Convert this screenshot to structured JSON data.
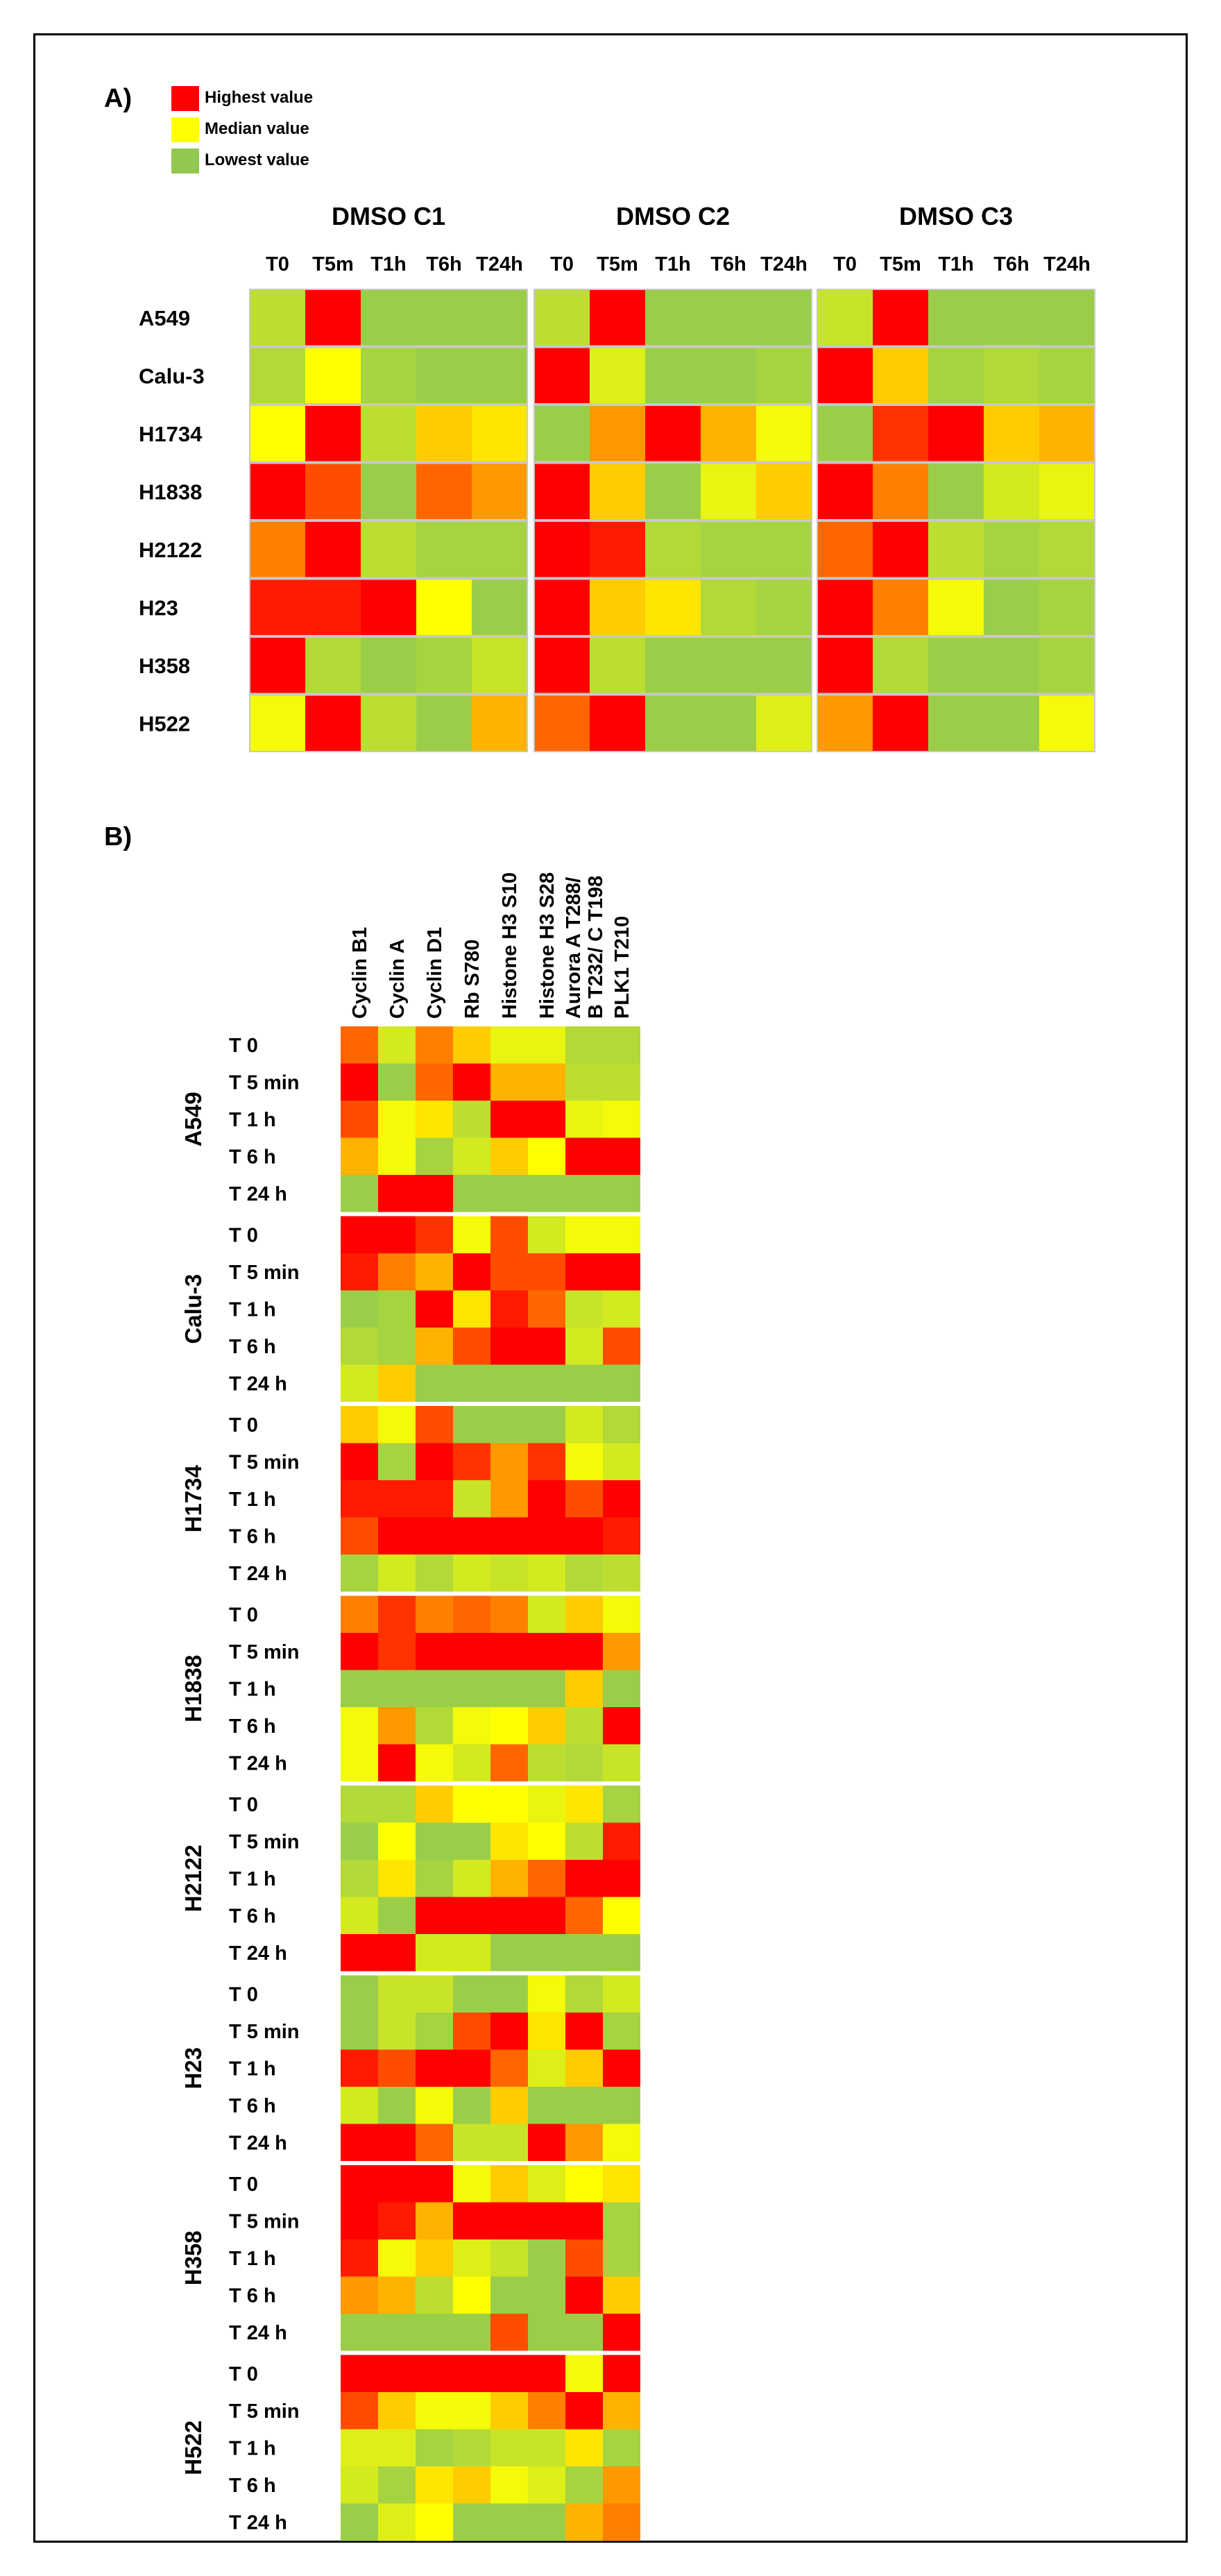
{
  "panel_a": {
    "label": "A)",
    "legend": [
      {
        "label": "Highest value",
        "color": "#ff0000"
      },
      {
        "label": "Median value",
        "color": "#ffff00"
      },
      {
        "label": "Lowest value",
        "color": "#90c850"
      }
    ]
  },
  "panel_b": {
    "label": "B)"
  },
  "colors": {
    "low": "#90c850",
    "mid": "#ffff00",
    "high": "#ff0000",
    "separator": "#ffffff",
    "frame": "#000000"
  },
  "chart_data": [
    {
      "type": "heatmap",
      "title": "A)",
      "color_scale": "0 = Lowest value (green), 0.5 = Median value (yellow), 1 = Highest value (red)",
      "groups": [
        "DMSO C1",
        "DMSO C2",
        "DMSO C3"
      ],
      "columns": [
        "T0",
        "T5m",
        "T1h",
        "T6h",
        "T24h"
      ],
      "rows": [
        "A549",
        "Calu-3",
        "H1734",
        "H1838",
        "H2122",
        "H23",
        "H358",
        "H522"
      ],
      "values": [
        [
          [
            0.2,
            1,
            0.05,
            0.05,
            0.05
          ],
          [
            0.15,
            0.5,
            0.1,
            0.05,
            0.05
          ],
          [
            0.5,
            1,
            0.2,
            0.6,
            0.55
          ],
          [
            1,
            0.85,
            0.05,
            0.8,
            0.7
          ],
          [
            0.75,
            1,
            0.2,
            0.1,
            0.1
          ],
          [
            0.95,
            0.95,
            1,
            0.5,
            0.05
          ],
          [
            1,
            0.15,
            0.05,
            0.1,
            0.25
          ],
          [
            0.45,
            1,
            0.2,
            0.05,
            0.65
          ]
        ],
        [
          [
            0.2,
            1,
            0.05,
            0.05,
            0.05
          ],
          [
            1,
            0.35,
            0.05,
            0.05,
            0.1
          ],
          [
            0.05,
            0.7,
            1,
            0.65,
            0.45
          ],
          [
            1,
            0.6,
            0.05,
            0.4,
            0.6
          ],
          [
            1,
            0.95,
            0.15,
            0.1,
            0.1
          ],
          [
            1,
            0.6,
            0.55,
            0.15,
            0.1
          ],
          [
            1,
            0.2,
            0.05,
            0.05,
            0.05
          ],
          [
            0.8,
            1,
            0.05,
            0.05,
            0.35
          ]
        ],
        [
          [
            0.25,
            1,
            0.05,
            0.05,
            0.05
          ],
          [
            1,
            0.6,
            0.1,
            0.15,
            0.1
          ],
          [
            0.05,
            0.9,
            1,
            0.6,
            0.65
          ],
          [
            1,
            0.75,
            0.05,
            0.3,
            0.4
          ],
          [
            0.8,
            1,
            0.2,
            0.1,
            0.15
          ],
          [
            1,
            0.75,
            0.45,
            0.05,
            0.1
          ],
          [
            1,
            0.15,
            0.05,
            0.05,
            0.1
          ],
          [
            0.7,
            1,
            0.05,
            0.05,
            0.45
          ]
        ]
      ]
    },
    {
      "type": "heatmap",
      "title": "B)",
      "color_scale": "0 = Lowest value (green), 0.5 = Median value (yellow), 1 = Highest value (red)",
      "columns": [
        "Cyclin B1",
        "Cyclin A",
        "Cyclin D1",
        "Rb S780",
        "Histone H3 S10",
        "Histone H3 S28",
        "Aurora A T288/ B T232/ C T198",
        "PLK1 T210"
      ],
      "column_lines": [
        [
          "Cyclin B1"
        ],
        [
          "Cyclin A"
        ],
        [
          "Cyclin D1"
        ],
        [
          "Rb S780"
        ],
        [
          "Histone H3 S10"
        ],
        [
          "Histone H3 S28"
        ],
        [
          "Aurora A T288/",
          "B T232/ C T198"
        ],
        [
          "PLK1 T210"
        ]
      ],
      "groups": [
        "A549",
        "Calu-3",
        "H1734",
        "H1838",
        "H2122",
        "H23",
        "H358",
        "H522"
      ],
      "timepoints": [
        "T 0",
        "T 5 min",
        "T 1 h",
        "T 6 h",
        "T 24 h"
      ],
      "values": [
        [
          [
            0.8,
            0.3,
            0.75,
            0.6,
            0.4,
            0.4,
            0.15,
            0.15
          ],
          [
            1,
            0.05,
            0.8,
            1,
            0.65,
            0.65,
            0.2,
            0.2
          ],
          [
            0.85,
            0.45,
            0.55,
            0.2,
            1,
            1,
            0.4,
            0.45
          ],
          [
            0.65,
            0.45,
            0.1,
            0.3,
            0.6,
            0.5,
            1,
            1
          ],
          [
            0.05,
            1,
            1,
            0.05,
            0.05,
            0.05,
            0.05,
            0.05
          ]
        ],
        [
          [
            1,
            1,
            0.9,
            0.45,
            0.85,
            0.3,
            0.45,
            0.45
          ],
          [
            0.95,
            0.75,
            0.65,
            1,
            0.85,
            0.85,
            1,
            1
          ],
          [
            0.05,
            0.1,
            1,
            0.55,
            0.95,
            0.8,
            0.25,
            0.3
          ],
          [
            0.15,
            0.1,
            0.65,
            0.85,
            1,
            1,
            0.3,
            0.85
          ],
          [
            0.3,
            0.6,
            0.05,
            0.05,
            0.05,
            0.05,
            0.05,
            0.05
          ]
        ],
        [
          [
            0.6,
            0.45,
            0.85,
            0.05,
            0.05,
            0.05,
            0.3,
            0.15
          ],
          [
            1,
            0.1,
            1,
            0.9,
            0.7,
            0.9,
            0.45,
            0.3
          ],
          [
            0.95,
            0.95,
            0.95,
            0.25,
            0.7,
            1,
            0.85,
            1
          ],
          [
            0.85,
            1,
            1,
            1,
            1,
            1,
            1,
            0.95
          ],
          [
            0.1,
            0.3,
            0.15,
            0.3,
            0.25,
            0.3,
            0.15,
            0.2
          ]
        ],
        [
          [
            0.75,
            0.9,
            0.75,
            0.8,
            0.75,
            0.3,
            0.6,
            0.45
          ],
          [
            1,
            0.9,
            1,
            1,
            1,
            1,
            1,
            0.7
          ],
          [
            0.05,
            0.05,
            0.05,
            0.05,
            0.05,
            0.05,
            0.6,
            0.05
          ],
          [
            0.45,
            0.7,
            0.15,
            0.45,
            0.5,
            0.6,
            0.2,
            1
          ],
          [
            0.45,
            1,
            0.45,
            0.3,
            0.8,
            0.2,
            0.15,
            0.25
          ]
        ],
        [
          [
            0.15,
            0.15,
            0.6,
            0.5,
            0.5,
            0.4,
            0.55,
            0.1
          ],
          [
            0.05,
            0.5,
            0.05,
            0.05,
            0.55,
            0.5,
            0.2,
            0.95
          ],
          [
            0.15,
            0.55,
            0.1,
            0.3,
            0.65,
            0.8,
            1,
            1
          ],
          [
            0.3,
            0.05,
            1,
            1,
            1,
            1,
            0.8,
            0.5
          ],
          [
            1,
            1,
            0.3,
            0.3,
            0.05,
            0.05,
            0.05,
            0.05
          ]
        ],
        [
          [
            0.05,
            0.25,
            0.25,
            0.05,
            0.05,
            0.45,
            0.15,
            0.3
          ],
          [
            0.05,
            0.25,
            0.1,
            0.85,
            1,
            0.55,
            1,
            0.1
          ],
          [
            0.95,
            0.85,
            1,
            1,
            0.8,
            0.35,
            0.6,
            1
          ],
          [
            0.3,
            0.05,
            0.45,
            0.05,
            0.6,
            0.05,
            0.05,
            0.05
          ],
          [
            1,
            1,
            0.8,
            0.25,
            0.25,
            1,
            0.7,
            0.45
          ]
        ],
        [
          [
            1,
            1,
            1,
            0.45,
            0.6,
            0.35,
            0.5,
            0.55
          ],
          [
            1,
            0.95,
            0.65,
            1,
            1,
            1,
            1,
            0.1
          ],
          [
            0.95,
            0.45,
            0.6,
            0.35,
            0.25,
            0.05,
            0.85,
            0.1
          ],
          [
            0.7,
            0.65,
            0.2,
            0.5,
            0.05,
            0.05,
            1,
            0.6
          ],
          [
            0.05,
            0.05,
            0.05,
            0.05,
            0.85,
            0.05,
            0.05,
            1
          ]
        ],
        [
          [
            1,
            1,
            1,
            1,
            1,
            1,
            0.45,
            1
          ],
          [
            0.85,
            0.6,
            0.45,
            0.45,
            0.6,
            0.75,
            1,
            0.65
          ],
          [
            0.35,
            0.35,
            0.1,
            0.15,
            0.25,
            0.25,
            0.55,
            0.1
          ],
          [
            0.3,
            0.1,
            0.55,
            0.6,
            0.45,
            0.35,
            0.1,
            0.7
          ],
          [
            0.05,
            0.35,
            0.5,
            0.05,
            0.05,
            0.05,
            0.65,
            0.75
          ]
        ]
      ]
    }
  ]
}
